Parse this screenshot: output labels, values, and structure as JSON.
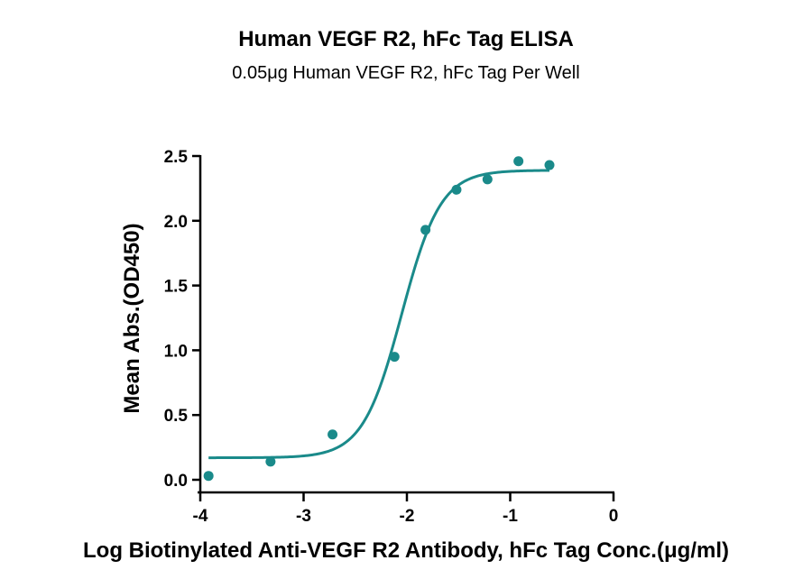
{
  "chart_data": {
    "type": "scatter",
    "title": "Human VEGF R2, hFc Tag ELISA",
    "subtitle": "0.05μg Human VEGF R2, hFc Tag Per Well",
    "xlabel": "Log Biotinylated Anti-VEGF R2 Antibody, hFc Tag Conc.(μg/ml)",
    "ylabel": "Mean Abs.(OD450)",
    "xlim": [
      -4,
      0
    ],
    "ylim": [
      0,
      2.5
    ],
    "x_ticks": [
      "-4",
      "-3",
      "-2",
      "-1",
      "0"
    ],
    "y_ticks": [
      "0.0",
      "0.5",
      "1.0",
      "1.5",
      "2.0",
      "2.5"
    ],
    "grid": false,
    "color": "#1a8a8a",
    "series": [
      {
        "points": [
          {
            "x": -3.92,
            "y": 0.03
          },
          {
            "x": -3.32,
            "y": 0.14
          },
          {
            "x": -2.72,
            "y": 0.35
          },
          {
            "x": -2.12,
            "y": 0.95
          },
          {
            "x": -1.82,
            "y": 1.93
          },
          {
            "x": -1.52,
            "y": 2.24
          },
          {
            "x": -1.22,
            "y": 2.32
          },
          {
            "x": -0.92,
            "y": 2.46
          },
          {
            "x": -0.62,
            "y": 2.43
          }
        ],
        "fit": {
          "model": "4PL",
          "bottom": 0.17,
          "top": 2.39,
          "log_ec50": -2.05,
          "hill_slope": 2.3
        }
      }
    ]
  }
}
